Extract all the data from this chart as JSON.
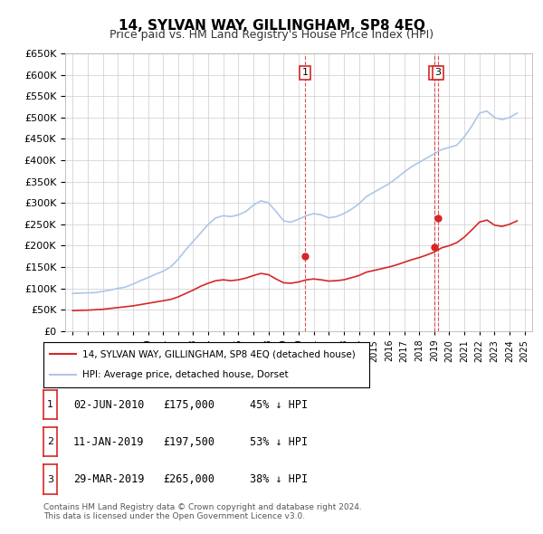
{
  "title": "14, SYLVAN WAY, GILLINGHAM, SP8 4EQ",
  "subtitle": "Price paid vs. HM Land Registry's House Price Index (HPI)",
  "ylabel_values": [
    "£0",
    "£50K",
    "£100K",
    "£150K",
    "£200K",
    "£250K",
    "£300K",
    "£350K",
    "£400K",
    "£450K",
    "£500K",
    "£550K",
    "£600K",
    "£650K"
  ],
  "ylim": [
    0,
    650000
  ],
  "yticks": [
    0,
    50000,
    100000,
    150000,
    200000,
    250000,
    300000,
    350000,
    400000,
    450000,
    500000,
    550000,
    600000,
    650000
  ],
  "x_start_year": 1995,
  "x_end_year": 2025,
  "hpi_color": "#aec6e8",
  "price_color": "#d62728",
  "sale_marker_color": "#d62728",
  "vline_color": "#d62728",
  "sale_points": [
    {
      "year": 2010.42,
      "price": 175000,
      "label": "1"
    },
    {
      "year": 2019.03,
      "price": 197500,
      "label": "2"
    },
    {
      "year": 2019.24,
      "price": 265000,
      "label": "3"
    }
  ],
  "hpi_data": {
    "years": [
      1995,
      1995.5,
      1996,
      1996.5,
      1997,
      1997.5,
      1998,
      1998.5,
      1999,
      1999.5,
      2000,
      2000.5,
      2001,
      2001.5,
      2002,
      2002.5,
      2003,
      2003.5,
      2004,
      2004.5,
      2005,
      2005.5,
      2006,
      2006.5,
      2007,
      2007.5,
      2008,
      2008.5,
      2009,
      2009.5,
      2010,
      2010.5,
      2011,
      2011.5,
      2012,
      2012.5,
      2013,
      2013.5,
      2014,
      2014.5,
      2015,
      2015.5,
      2016,
      2016.5,
      2017,
      2017.5,
      2018,
      2018.5,
      2019,
      2019.5,
      2020,
      2020.5,
      2021,
      2021.5,
      2022,
      2022.5,
      2023,
      2023.5,
      2024,
      2024.5
    ],
    "values": [
      88000,
      89000,
      89500,
      90000,
      93000,
      96000,
      100000,
      103000,
      110000,
      118000,
      125000,
      133000,
      140000,
      150000,
      168000,
      190000,
      210000,
      230000,
      250000,
      265000,
      270000,
      268000,
      272000,
      280000,
      295000,
      305000,
      300000,
      280000,
      258000,
      255000,
      262000,
      270000,
      275000,
      272000,
      265000,
      268000,
      275000,
      285000,
      298000,
      315000,
      325000,
      335000,
      345000,
      358000,
      372000,
      385000,
      395000,
      405000,
      415000,
      425000,
      430000,
      435000,
      455000,
      480000,
      510000,
      515000,
      500000,
      495000,
      500000,
      510000
    ]
  },
  "price_paid_data": {
    "years": [
      1995,
      1995.5,
      1996,
      1996.5,
      1997,
      1997.5,
      1998,
      1998.5,
      1999,
      1999.5,
      2000,
      2000.5,
      2001,
      2001.5,
      2002,
      2002.5,
      2003,
      2003.5,
      2004,
      2004.5,
      2005,
      2005.5,
      2006,
      2006.5,
      2007,
      2007.5,
      2008,
      2008.5,
      2009,
      2009.5,
      2010,
      2010.5,
      2011,
      2011.5,
      2012,
      2012.5,
      2013,
      2013.5,
      2014,
      2014.5,
      2015,
      2015.5,
      2016,
      2016.5,
      2017,
      2017.5,
      2018,
      2018.5,
      2019,
      2019.5,
      2020,
      2020.5,
      2021,
      2021.5,
      2022,
      2022.5,
      2023,
      2023.5,
      2024,
      2024.5
    ],
    "values": [
      48000,
      48500,
      49000,
      50000,
      51000,
      53000,
      55000,
      57000,
      59000,
      62000,
      65000,
      68000,
      71000,
      74000,
      80000,
      88000,
      96000,
      105000,
      112000,
      118000,
      120000,
      118000,
      120000,
      124000,
      130000,
      135000,
      132000,
      122000,
      113000,
      112000,
      115000,
      120000,
      122000,
      120000,
      117000,
      118000,
      120000,
      125000,
      130000,
      138000,
      142000,
      146000,
      150000,
      155000,
      161000,
      167000,
      172000,
      178000,
      185000,
      195000,
      200000,
      207000,
      220000,
      237000,
      255000,
      260000,
      248000,
      245000,
      250000,
      258000
    ]
  },
  "legend_entries": [
    "14, SYLVAN WAY, GILLINGHAM, SP8 4EQ (detached house)",
    "HPI: Average price, detached house, Dorset"
  ],
  "table_data": [
    {
      "num": "1",
      "date": "02-JUN-2010",
      "price": "£175,000",
      "pct": "45% ↓ HPI"
    },
    {
      "num": "2",
      "date": "11-JAN-2019",
      "price": "£197,500",
      "pct": "53% ↓ HPI"
    },
    {
      "num": "3",
      "date": "29-MAR-2019",
      "price": "£265,000",
      "pct": "38% ↓ HPI"
    }
  ],
  "footnote": "Contains HM Land Registry data © Crown copyright and database right 2024.\nThis data is licensed under the Open Government Licence v3.0.",
  "bg_color": "#ffffff",
  "grid_color": "#cccccc"
}
